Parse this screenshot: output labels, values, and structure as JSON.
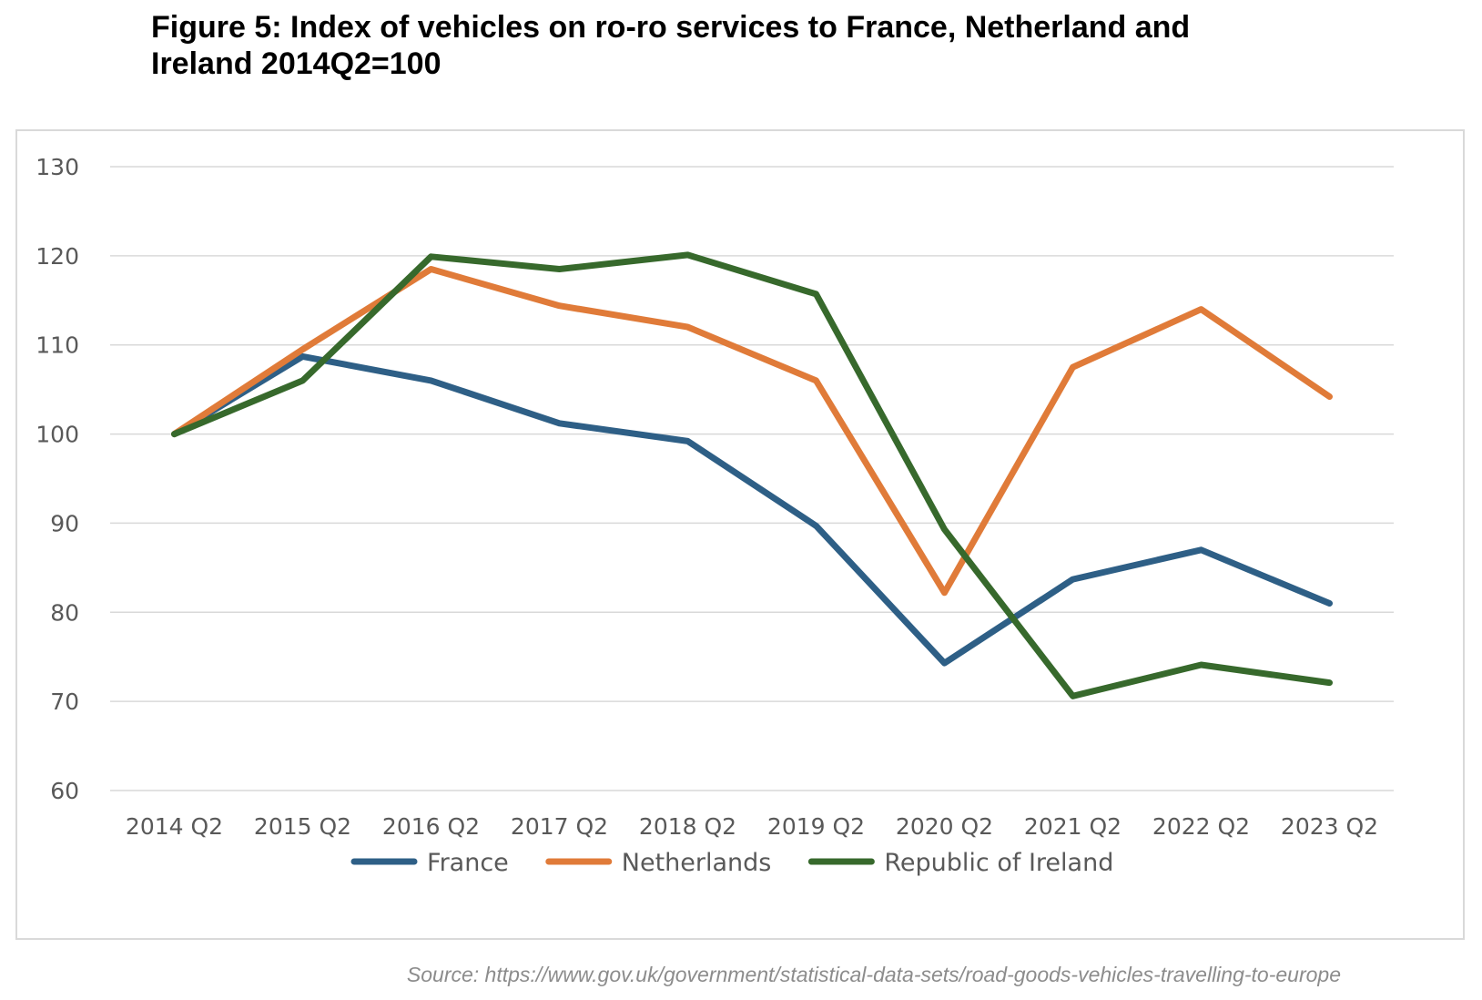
{
  "figure": {
    "title_line1": "Figure 5: Index of vehicles on ro-ro services to France, Netherland and",
    "title_line2": "Ireland 2014Q2=100",
    "source": "Source: https://www.gov.uk/government/statistical-data-sets/road-goods-vehicles-travelling-to-europe"
  },
  "chart_data": {
    "type": "line",
    "title": "Figure 5: Index of vehicles on ro-ro services to France, Netherland and Ireland 2014Q2=100",
    "xlabel": "",
    "ylabel": "",
    "categories": [
      "2014 Q2",
      "2015 Q2",
      "2016 Q2",
      "2017 Q2",
      "2018 Q2",
      "2019 Q2",
      "2020 Q2",
      "2021 Q2",
      "2022 Q2",
      "2023 Q2"
    ],
    "ylim": [
      60,
      130
    ],
    "yticks": [
      60,
      70,
      80,
      90,
      100,
      110,
      120,
      130
    ],
    "grid": true,
    "legend_position": "bottom",
    "series": [
      {
        "name": "France",
        "color": "#2e5f86",
        "values": [
          100,
          108.7,
          106,
          101.2,
          99.2,
          89.7,
          74.3,
          83.7,
          87,
          81
        ]
      },
      {
        "name": "Netherlands",
        "color": "#e07b39",
        "values": [
          100,
          109.5,
          118.5,
          114.4,
          112,
          106,
          82.2,
          107.5,
          114,
          104.2
        ]
      },
      {
        "name": "Republic of Ireland",
        "color": "#37692c",
        "values": [
          100,
          106,
          119.9,
          118.5,
          120.1,
          115.7,
          89.3,
          70.6,
          74.1,
          72.1
        ]
      }
    ]
  }
}
